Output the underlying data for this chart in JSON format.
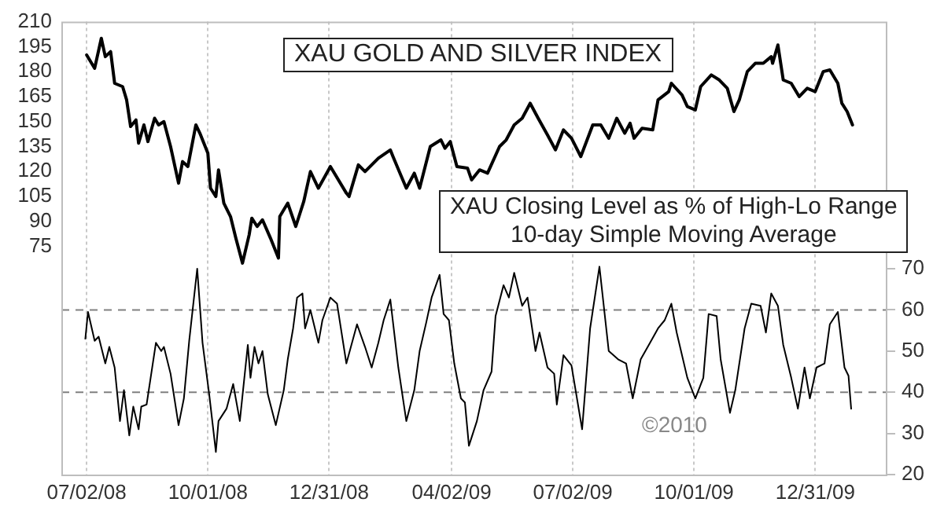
{
  "chart_data": {
    "type": "line",
    "title": "XAU GOLD AND SILVER INDEX",
    "annotations": [
      "XAU Closing Level as % of High-Lo Range",
      "10-day Simple Moving Average",
      "©2010"
    ],
    "series": [
      {
        "color": "#000000",
        "axis": "y",
        "x": [
          "2008-07-02",
          "2008-07-08",
          "2008-07-13",
          "2008-07-16",
          "2008-07-20",
          "2008-07-23",
          "2008-07-29",
          "2008-08-01",
          "2008-08-04",
          "2008-08-08",
          "2008-08-10",
          "2008-08-14",
          "2008-08-17",
          "2008-08-22",
          "2008-08-25",
          "2008-08-29",
          "2008-09-03",
          "2008-09-09",
          "2008-09-12",
          "2008-09-16",
          "2008-09-22",
          "2008-09-25",
          "2008-10-01",
          "2008-10-03",
          "2008-10-07",
          "2008-10-09",
          "2008-10-13",
          "2008-10-18",
          "2008-10-22",
          "2008-10-27",
          "2008-11-01",
          "2008-11-03",
          "2008-11-07",
          "2008-11-11",
          "2008-11-17",
          "2008-11-23",
          "2008-11-24",
          "2008-11-30",
          "2008-12-06",
          "2008-12-12",
          "2008-12-17",
          "2008-12-23",
          "2009-01-01",
          "2009-01-13",
          "2009-01-15",
          "2009-01-22",
          "2009-01-27",
          "2009-02-06",
          "2009-02-15",
          "2009-02-17",
          "2009-02-27",
          "2009-03-05",
          "2009-03-09",
          "2009-03-17",
          "2009-03-25",
          "2009-03-28",
          "2009-04-01",
          "2009-04-06",
          "2009-04-14",
          "2009-04-17",
          "2009-04-23",
          "2009-04-29",
          "2009-05-08",
          "2009-05-13",
          "2009-05-19",
          "2009-05-25",
          "2009-05-31",
          "2009-06-06",
          "2009-06-13",
          "2009-06-19",
          "2009-06-25",
          "2009-07-01",
          "2009-07-08",
          "2009-07-17",
          "2009-07-23",
          "2009-07-29",
          "2009-08-04",
          "2009-08-10",
          "2009-08-14",
          "2009-08-17",
          "2009-08-23",
          "2009-08-31",
          "2009-09-04",
          "2009-09-12",
          "2009-09-14",
          "2009-09-22",
          "2009-09-26",
          "2009-10-02",
          "2009-10-06",
          "2009-10-14",
          "2009-10-20",
          "2009-10-26",
          "2009-10-31",
          "2009-11-04",
          "2009-11-10",
          "2009-11-16",
          "2009-11-22",
          "2009-11-28",
          "2009-11-29",
          "2009-12-03",
          "2009-12-07",
          "2009-12-13",
          "2009-12-19",
          "2009-12-25",
          "2009-12-31",
          "2010-01-06",
          "2010-01-11",
          "2010-01-17",
          "2010-01-20",
          "2010-01-24",
          "2010-01-28"
        ],
        "values": [
          190,
          182,
          200,
          189,
          192,
          173,
          171,
          163,
          147,
          151,
          137,
          148,
          138,
          152,
          148,
          150,
          135,
          113,
          126,
          123,
          148,
          143,
          131,
          110,
          105,
          121,
          101,
          93,
          80,
          65,
          82,
          92,
          87,
          91,
          80,
          68,
          93,
          101,
          87,
          102,
          120,
          110,
          123,
          107,
          105,
          124,
          120,
          128,
          133,
          129,
          110,
          119,
          110,
          135,
          139,
          134,
          138,
          123,
          122,
          115,
          121,
          119,
          135,
          139,
          148,
          152,
          161,
          152,
          142,
          133,
          145,
          140,
          129,
          148,
          148,
          140,
          152,
          143,
          149,
          140,
          146,
          145,
          163,
          168,
          173,
          166,
          159,
          157,
          171,
          178,
          175,
          170,
          156,
          163,
          180,
          185,
          185,
          189,
          185,
          196,
          175,
          173,
          165,
          170,
          168,
          180,
          181,
          173,
          161,
          156,
          148
        ]
      },
      {
        "color": "#000000",
        "axis": "y2",
        "x": [
          "2008-07-01",
          "2008-07-03",
          "2008-07-08",
          "2008-07-11",
          "2008-07-16",
          "2008-07-19",
          "2008-07-23",
          "2008-07-27",
          "2008-07-30",
          "2008-08-03",
          "2008-08-06",
          "2008-08-10",
          "2008-08-12",
          "2008-08-16",
          "2008-08-23",
          "2008-08-27",
          "2008-08-29",
          "2008-09-03",
          "2008-09-09",
          "2008-09-13",
          "2008-09-17",
          "2008-09-23",
          "2008-09-27",
          "2008-10-02",
          "2008-10-07",
          "2008-10-09",
          "2008-10-15",
          "2008-10-20",
          "2008-10-25",
          "2008-10-31",
          "2008-11-02",
          "2008-11-05",
          "2008-11-08",
          "2008-11-11",
          "2008-11-15",
          "2008-11-21",
          "2008-11-27",
          "2008-11-30",
          "2008-12-04",
          "2008-12-07",
          "2008-12-11",
          "2008-12-13",
          "2008-12-17",
          "2008-12-23",
          "2008-12-26",
          "2009-01-01",
          "2009-01-06",
          "2009-01-13",
          "2009-01-21",
          "2009-01-27",
          "2009-02-01",
          "2009-02-06",
          "2009-02-10",
          "2009-02-15",
          "2009-02-21",
          "2009-02-27",
          "2009-03-05",
          "2009-03-09",
          "2009-03-14",
          "2009-03-18",
          "2009-03-24",
          "2009-03-27",
          "2009-03-31",
          "2009-04-04",
          "2009-04-09",
          "2009-04-12",
          "2009-04-15",
          "2009-04-21",
          "2009-04-26",
          "2009-05-02",
          "2009-05-05",
          "2009-05-11",
          "2009-05-15",
          "2009-05-19",
          "2009-05-25",
          "2009-05-29",
          "2009-06-04",
          "2009-06-07",
          "2009-06-13",
          "2009-06-18",
          "2009-06-20",
          "2009-06-25",
          "2009-07-01",
          "2009-07-09",
          "2009-07-15",
          "2009-07-22",
          "2009-07-29",
          "2009-08-05",
          "2009-08-11",
          "2009-08-16",
          "2009-08-22",
          "2009-08-29",
          "2009-09-04",
          "2009-09-09",
          "2009-09-14",
          "2009-09-18",
          "2009-09-26",
          "2009-10-02",
          "2009-10-08",
          "2009-10-12",
          "2009-10-18",
          "2009-10-21",
          "2009-10-28",
          "2009-11-01",
          "2009-11-08",
          "2009-11-13",
          "2009-11-20",
          "2009-11-24",
          "2009-11-28",
          "2009-12-03",
          "2009-12-07",
          "2009-12-13",
          "2009-12-18",
          "2009-12-23",
          "2009-12-27",
          "2010-01-01",
          "2010-01-07",
          "2010-01-11",
          "2010-01-17",
          "2010-01-22",
          "2010-01-25",
          "2010-01-27"
        ],
        "values": [
          53,
          59.5,
          52.5,
          53.5,
          47,
          51,
          46,
          33,
          40.5,
          29.5,
          36.5,
          31,
          36.5,
          37,
          52,
          50,
          51,
          44.5,
          32,
          38.5,
          52.5,
          70,
          52,
          39.5,
          25.5,
          33,
          36,
          42,
          33,
          51.5,
          43.5,
          51,
          47,
          50,
          39.5,
          32,
          40.5,
          48,
          55.5,
          63,
          64,
          55.5,
          60,
          52,
          57.5,
          63,
          61.5,
          47,
          56.5,
          51,
          46,
          52,
          57.5,
          62.5,
          46,
          33,
          40.5,
          50,
          57,
          63,
          68.5,
          59,
          57.5,
          47,
          38.5,
          37.5,
          27,
          33,
          40.5,
          45,
          58.5,
          66,
          63,
          69,
          61,
          63,
          50,
          54.5,
          46,
          44.5,
          37,
          49,
          46.5,
          31,
          55.5,
          70.5,
          50,
          48,
          47,
          38.5,
          48,
          52,
          55.5,
          57.5,
          61.5,
          54.5,
          43.5,
          38.5,
          43.5,
          59,
          58.5,
          48,
          35,
          40.5,
          55.5,
          61.5,
          61,
          54.5,
          64,
          61,
          51.5,
          43.5,
          36,
          46,
          38.5,
          46,
          47,
          56.5,
          59.5,
          46,
          44,
          36
        ]
      }
    ],
    "xlim": [
      "2008-06-13",
      "2010-02-22"
    ],
    "xticks": [
      {
        "value": "2008-07-02",
        "label": "07/02/08"
      },
      {
        "value": "2008-10-01",
        "label": "10/01/08"
      },
      {
        "value": "2008-12-31",
        "label": "12/31/08"
      },
      {
        "value": "2009-04-02",
        "label": "04/02/09"
      },
      {
        "value": "2009-07-02",
        "label": "07/02/09"
      },
      {
        "value": "2009-10-01",
        "label": "10/01/09"
      },
      {
        "value": "2009-12-31",
        "label": "12/31/09"
      }
    ],
    "ylim": [
      -62,
      210
    ],
    "yticks": [
      75,
      90,
      105,
      120,
      135,
      150,
      165,
      180,
      195,
      210
    ],
    "y2lim": [
      20,
      130
    ],
    "y2ticks": [
      20,
      30,
      40,
      50,
      60,
      70
    ],
    "ref_lines": [
      {
        "axis": "y2",
        "value": 60,
        "line_style": "dashed",
        "color": "#808080"
      },
      {
        "axis": "y2",
        "value": 40,
        "line_style": "dashed",
        "color": "#808080"
      }
    ],
    "grid": "x",
    "legend": false,
    "marker": "none",
    "line_style": "solid"
  }
}
